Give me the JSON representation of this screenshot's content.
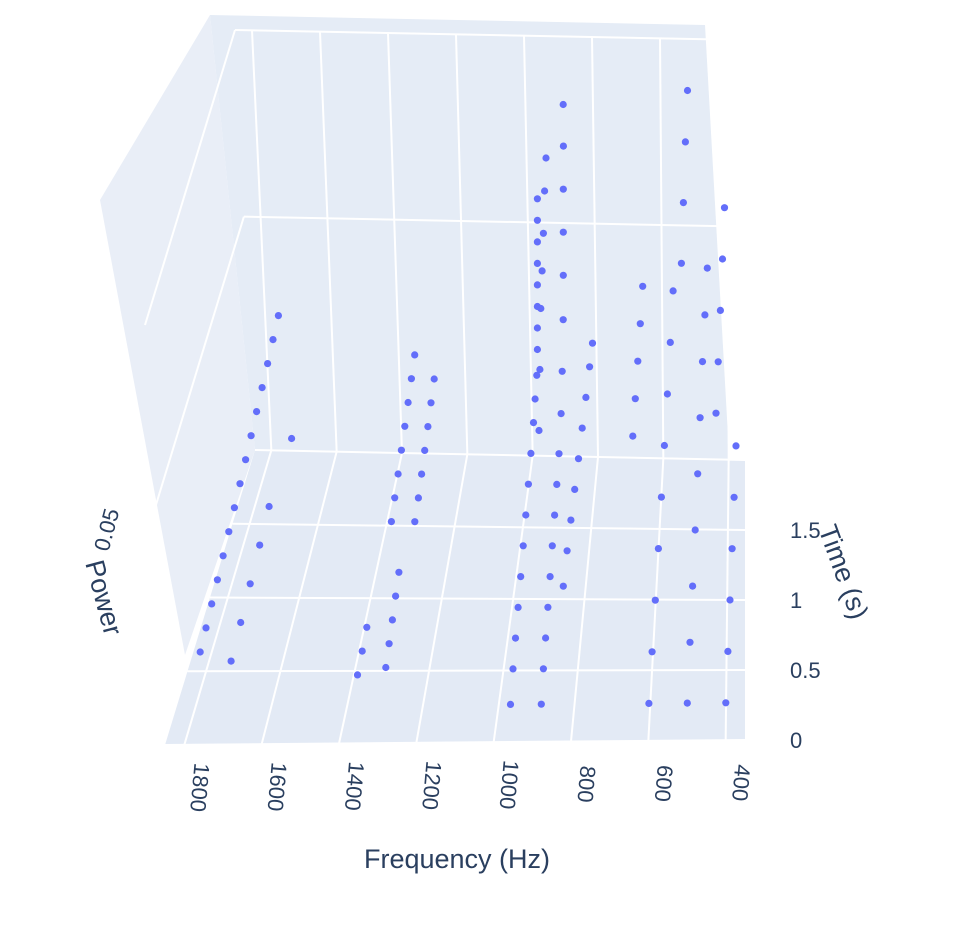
{
  "chart_data": {
    "type": "scatter3d",
    "title": "",
    "marker_color": "#636efa",
    "background_color": "#e5ecf6",
    "grid_color": "#ffffff",
    "text_color": "#2a3f5f",
    "x_axis": {
      "label": "Frequency (Hz)",
      "range": [
        350,
        1850
      ],
      "reversed": true,
      "tick_labels": [
        "1800",
        "1600",
        "1400",
        "1200",
        "1000",
        "800",
        "600",
        "400"
      ],
      "tick_values": [
        1800,
        1600,
        1400,
        1200,
        1000,
        800,
        600,
        400
      ]
    },
    "y_axis": {
      "label": "Time (s)",
      "range": [
        0,
        2.0
      ],
      "tick_labels": [
        "0",
        "0.5",
        "1",
        "1.5"
      ],
      "tick_values": [
        0,
        0.5,
        1,
        1.5
      ]
    },
    "z_axis": {
      "label": "Power",
      "range": [
        0,
        0.09
      ],
      "tick_labels": [
        "0.05"
      ],
      "tick_values": [
        0.05
      ]
    },
    "series": [
      {
        "values_note_omitted": true,
        "points": [
          [
            1780,
            0.25,
            0.012
          ],
          [
            1775,
            0.35,
            0.014
          ],
          [
            1770,
            0.45,
            0.016
          ],
          [
            1765,
            0.55,
            0.018
          ],
          [
            1760,
            0.65,
            0.02
          ],
          [
            1755,
            0.75,
            0.022
          ],
          [
            1750,
            0.85,
            0.024
          ],
          [
            1745,
            0.95,
            0.026
          ],
          [
            1740,
            1.05,
            0.028
          ],
          [
            1735,
            1.15,
            0.03
          ],
          [
            1730,
            1.25,
            0.032
          ],
          [
            1725,
            1.35,
            0.034
          ],
          [
            1720,
            1.45,
            0.036
          ],
          [
            1715,
            1.55,
            0.038
          ],
          [
            1710,
            1.65,
            0.04
          ],
          [
            1700,
            0.25,
            0.01
          ],
          [
            1695,
            0.45,
            0.012
          ],
          [
            1690,
            0.65,
            0.014
          ],
          [
            1685,
            0.85,
            0.016
          ],
          [
            1680,
            1.05,
            0.018
          ],
          [
            1660,
            1.45,
            0.02
          ],
          [
            1360,
            0.15,
            0.01
          ],
          [
            1355,
            0.25,
            0.012
          ],
          [
            1350,
            0.35,
            0.014
          ],
          [
            1330,
            0.95,
            0.018
          ],
          [
            1328,
            1.05,
            0.02
          ],
          [
            1326,
            1.15,
            0.022
          ],
          [
            1324,
            1.25,
            0.024
          ],
          [
            1322,
            1.35,
            0.026
          ],
          [
            1320,
            1.45,
            0.028
          ],
          [
            1318,
            1.55,
            0.03
          ],
          [
            1316,
            1.65,
            0.032
          ],
          [
            1290,
            0.2,
            0.01
          ],
          [
            1288,
            0.3,
            0.012
          ],
          [
            1286,
            0.4,
            0.014
          ],
          [
            1284,
            0.5,
            0.016
          ],
          [
            1282,
            0.6,
            0.018
          ],
          [
            1265,
            0.95,
            0.018
          ],
          [
            1262,
            1.05,
            0.02
          ],
          [
            1260,
            1.15,
            0.022
          ],
          [
            1258,
            1.25,
            0.024
          ],
          [
            1256,
            1.35,
            0.026
          ],
          [
            1254,
            1.45,
            0.028
          ],
          [
            1252,
            1.55,
            0.03
          ],
          [
            960,
            0.1,
            0.005
          ],
          [
            960,
            0.25,
            0.008
          ],
          [
            960,
            0.4,
            0.01
          ],
          [
            960,
            0.55,
            0.012
          ],
          [
            960,
            0.7,
            0.014
          ],
          [
            960,
            0.85,
            0.016
          ],
          [
            960,
            1.0,
            0.018
          ],
          [
            960,
            1.15,
            0.02
          ],
          [
            960,
            1.3,
            0.022
          ],
          [
            960,
            1.45,
            0.024
          ],
          [
            960,
            1.55,
            0.026
          ],
          [
            960,
            1.65,
            0.028
          ],
          [
            960,
            1.7,
            0.032
          ],
          [
            960,
            1.72,
            0.036
          ],
          [
            960,
            1.74,
            0.04
          ],
          [
            960,
            1.76,
            0.044
          ],
          [
            960,
            1.78,
            0.048
          ],
          [
            960,
            1.8,
            0.052
          ],
          [
            960,
            1.82,
            0.056
          ],
          [
            960,
            1.84,
            0.06
          ],
          [
            930,
            1.2,
            0.03
          ],
          [
            930,
            1.3,
            0.04
          ],
          [
            930,
            1.4,
            0.05
          ],
          [
            930,
            1.5,
            0.055
          ],
          [
            930,
            1.6,
            0.06
          ],
          [
            930,
            1.7,
            0.066
          ],
          [
            930,
            1.8,
            0.07
          ],
          [
            880,
            0.1,
            0.005
          ],
          [
            880,
            0.25,
            0.008
          ],
          [
            880,
            0.4,
            0.01
          ],
          [
            880,
            0.55,
            0.012
          ],
          [
            880,
            0.7,
            0.014
          ],
          [
            880,
            0.85,
            0.016
          ],
          [
            880,
            1.0,
            0.018
          ],
          [
            880,
            1.15,
            0.02
          ],
          [
            880,
            1.3,
            0.022
          ],
          [
            880,
            1.45,
            0.026
          ],
          [
            880,
            1.55,
            0.032
          ],
          [
            880,
            1.65,
            0.04
          ],
          [
            880,
            1.7,
            0.048
          ],
          [
            880,
            1.74,
            0.056
          ],
          [
            880,
            1.78,
            0.064
          ],
          [
            880,
            1.82,
            0.072
          ],
          [
            880,
            1.85,
            0.08
          ],
          [
            840,
            0.6,
            0.015
          ],
          [
            835,
            0.75,
            0.018
          ],
          [
            830,
            0.9,
            0.02
          ],
          [
            825,
            1.05,
            0.022
          ],
          [
            820,
            1.2,
            0.024
          ],
          [
            815,
            1.35,
            0.026
          ],
          [
            810,
            1.5,
            0.028
          ],
          [
            805,
            1.65,
            0.03
          ],
          [
            800,
            1.75,
            0.032
          ],
          [
            660,
            1.0,
            0.035
          ],
          [
            655,
            1.1,
            0.04
          ],
          [
            650,
            1.2,
            0.045
          ],
          [
            645,
            1.3,
            0.05
          ],
          [
            640,
            1.4,
            0.055
          ],
          [
            600,
            0.1,
            0.005
          ],
          [
            595,
            0.3,
            0.01
          ],
          [
            590,
            0.5,
            0.015
          ],
          [
            585,
            0.7,
            0.02
          ],
          [
            580,
            0.9,
            0.025
          ],
          [
            575,
            1.1,
            0.03
          ],
          [
            570,
            1.3,
            0.035
          ],
          [
            565,
            1.5,
            0.04
          ],
          [
            560,
            1.7,
            0.045
          ],
          [
            530,
            1.4,
            0.06
          ],
          [
            525,
            1.5,
            0.07
          ],
          [
            520,
            1.6,
            0.08
          ],
          [
            515,
            1.7,
            0.088
          ],
          [
            500,
            0.1,
            0.005
          ],
          [
            495,
            0.3,
            0.012
          ],
          [
            490,
            0.5,
            0.018
          ],
          [
            485,
            0.7,
            0.024
          ],
          [
            480,
            0.9,
            0.03
          ],
          [
            475,
            1.1,
            0.036
          ],
          [
            470,
            1.3,
            0.042
          ],
          [
            465,
            1.5,
            0.046
          ],
          [
            460,
            1.7,
            0.05
          ],
          [
            430,
            1.0,
            0.04
          ],
          [
            425,
            1.2,
            0.045
          ],
          [
            420,
            1.4,
            0.05
          ],
          [
            415,
            1.6,
            0.055
          ],
          [
            410,
            1.8,
            0.06
          ],
          [
            400,
            0.1,
            0.005
          ],
          [
            395,
            0.3,
            0.01
          ],
          [
            390,
            0.5,
            0.015
          ],
          [
            385,
            0.7,
            0.02
          ],
          [
            380,
            0.9,
            0.025
          ],
          [
            375,
            1.1,
            0.03
          ]
        ]
      }
    ]
  }
}
